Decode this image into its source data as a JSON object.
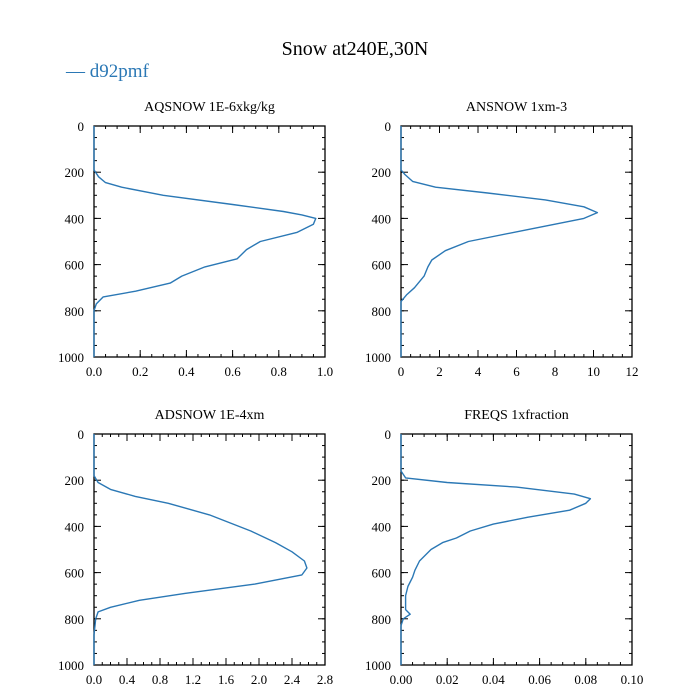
{
  "chart_data": {
    "type": "line",
    "title": "Snow at240E,30N",
    "legend": {
      "entries": [
        {
          "label": "— d92pmf",
          "color": "#2b78b5"
        }
      ],
      "placement": "top-left"
    },
    "panels": [
      {
        "title": "AQSNOW  1E-6xkg/kg",
        "xlim": [
          0,
          1.0
        ],
        "ylim": [
          1000,
          0
        ],
        "xticks": [
          "0.0",
          "0.2",
          "0.4",
          "0.6",
          "0.8",
          "1.0"
        ],
        "xtick_values": [
          0,
          0.2,
          0.4,
          0.6,
          0.8,
          1.0
        ],
        "xminor": 0.05,
        "yticks": [
          "0",
          "200",
          "400",
          "600",
          "800",
          "1000"
        ],
        "ytick_values": [
          0,
          200,
          400,
          600,
          800,
          1000
        ],
        "yminor": 50,
        "series": [
          {
            "name": "d92pmf",
            "color": "#2b78b5",
            "x": [
              0,
              0,
              0.02,
              0.05,
              0.12,
              0.3,
              0.6,
              0.82,
              0.9,
              0.96,
              0.95,
              0.88,
              0.72,
              0.66,
              0.62,
              0.48,
              0.38,
              0.33,
              0.18,
              0.04,
              0.01,
              0,
              0
            ],
            "y": [
              0,
              190,
              220,
              245,
              265,
              300,
              340,
              370,
              385,
              400,
              425,
              460,
              500,
              535,
              575,
              610,
              650,
              680,
              715,
              740,
              770,
              800,
              1000
            ]
          }
        ]
      },
      {
        "title": "ANSNOW  1xm-3",
        "xlim": [
          0,
          12
        ],
        "ylim": [
          1000,
          0
        ],
        "xticks": [
          "0",
          "2",
          "4",
          "6",
          "8",
          "10",
          "12"
        ],
        "xtick_values": [
          0,
          2,
          4,
          6,
          8,
          10,
          12
        ],
        "xminor": 0.5,
        "yticks": [
          "0",
          "200",
          "400",
          "600",
          "800",
          "1000"
        ],
        "ytick_values": [
          0,
          200,
          400,
          600,
          800,
          1000
        ],
        "yminor": 50,
        "series": [
          {
            "name": "d92pmf",
            "color": "#2b78b5",
            "x": [
              0,
              0,
              0.2,
              0.6,
              1.8,
              4.5,
              7.5,
              9.5,
              10.2,
              9.5,
              6.5,
              3.5,
              2.3,
              1.6,
              1.4,
              1.2,
              0.9,
              0.7,
              0.3,
              0,
              0
            ],
            "y": [
              0,
              190,
              210,
              240,
              265,
              290,
              320,
              350,
              375,
              400,
              450,
              500,
              540,
              580,
              610,
              650,
              680,
              700,
              730,
              760,
              1000
            ]
          }
        ]
      },
      {
        "title": "ADSNOW  1E-4xm",
        "xlim": [
          0,
          2.8
        ],
        "ylim": [
          1000,
          0
        ],
        "xticks": [
          "0.0",
          "0.4",
          "0.8",
          "1.2",
          "1.6",
          "2.0",
          "2.4",
          "2.8"
        ],
        "xtick_values": [
          0,
          0.4,
          0.8,
          1.2,
          1.6,
          2.0,
          2.4,
          2.8
        ],
        "xminor": 0.1,
        "yticks": [
          "0",
          "200",
          "400",
          "600",
          "800",
          "1000"
        ],
        "ytick_values": [
          0,
          200,
          400,
          600,
          800,
          1000
        ],
        "yminor": 50,
        "series": [
          {
            "name": "d92pmf",
            "color": "#2b78b5",
            "x": [
              0,
              0,
              0.05,
              0.2,
              0.5,
              0.9,
              1.4,
              1.9,
              2.2,
              2.4,
              2.55,
              2.58,
              2.52,
              1.95,
              1.1,
              0.55,
              0.2,
              0.05,
              0.02,
              0,
              0
            ],
            "y": [
              0,
              180,
              210,
              240,
              270,
              300,
              350,
              420,
              470,
              510,
              550,
              580,
              610,
              650,
              690,
              720,
              750,
              770,
              800,
              870,
              1000
            ]
          }
        ]
      },
      {
        "title": "FREQS  1xfraction",
        "xlim": [
          0,
          0.1
        ],
        "ylim": [
          1000,
          0
        ],
        "xticks": [
          "0.00",
          "0.02",
          "0.04",
          "0.06",
          "0.08",
          "0.10"
        ],
        "xtick_values": [
          0,
          0.02,
          0.04,
          0.06,
          0.08,
          0.1
        ],
        "xminor": 0.005,
        "yticks": [
          "0",
          "200",
          "400",
          "600",
          "800",
          "1000"
        ],
        "ytick_values": [
          0,
          200,
          400,
          600,
          800,
          1000
        ],
        "yminor": 50,
        "series": [
          {
            "name": "d92pmf",
            "color": "#2b78b5",
            "x": [
              0,
              0,
              0.002,
              0.02,
              0.05,
              0.075,
              0.082,
              0.08,
              0.073,
              0.055,
              0.04,
              0.03,
              0.024,
              0.018,
              0.013,
              0.008,
              0.006,
              0.005,
              0.003,
              0.002,
              0.002,
              0.004,
              0.001,
              0,
              0
            ],
            "y": [
              0,
              160,
              190,
              210,
              230,
              260,
              280,
              300,
              330,
              360,
              390,
              420,
              450,
              470,
              500,
              550,
              590,
              620,
              660,
              700,
              760,
              780,
              800,
              830,
              1000
            ]
          }
        ]
      }
    ]
  }
}
